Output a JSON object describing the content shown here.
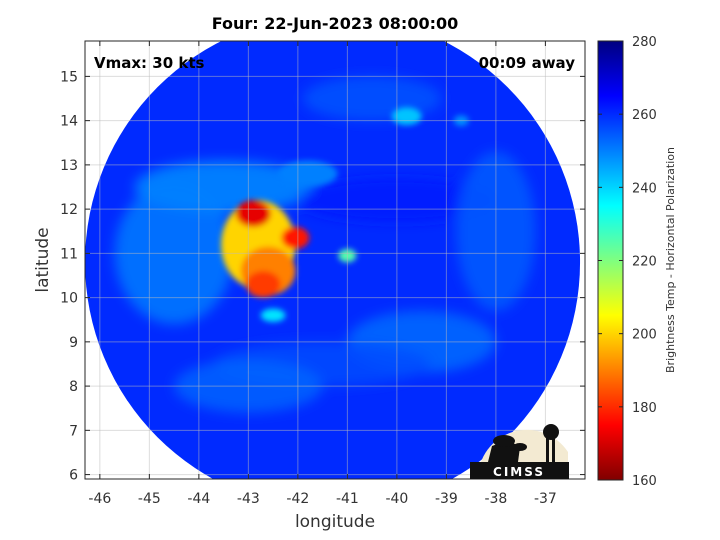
{
  "chart_data": {
    "type": "heatmap",
    "title": "Four: 22-Jun-2023 08:00:00",
    "xlabel": "longitude",
    "ylabel": "latitude",
    "xlim": [
      -46.3,
      -36.2
    ],
    "ylim": [
      5.9,
      15.8
    ],
    "xticks": [
      -46,
      -45,
      -44,
      -43,
      -42,
      -41,
      -40,
      -39,
      -38,
      -37
    ],
    "yticks": [
      6,
      7,
      8,
      9,
      10,
      11,
      12,
      13,
      14,
      15
    ],
    "grid": true,
    "swath": {
      "center": [
        -41.3,
        10.8
      ],
      "radius_deg": 5.0
    },
    "background_value": 260,
    "features": [
      {
        "lon": -42.8,
        "lat": 11.2,
        "rx": 0.75,
        "ry": 1.0,
        "value": 200
      },
      {
        "lon": -42.6,
        "lat": 10.6,
        "rx": 0.55,
        "ry": 0.55,
        "value": 190
      },
      {
        "lon": -42.9,
        "lat": 11.9,
        "rx": 0.35,
        "ry": 0.3,
        "value": 172
      },
      {
        "lon": -42.05,
        "lat": 11.35,
        "rx": 0.28,
        "ry": 0.25,
        "value": 178
      },
      {
        "lon": -42.7,
        "lat": 10.3,
        "rx": 0.35,
        "ry": 0.3,
        "value": 182
      },
      {
        "lon": -41.0,
        "lat": 10.95,
        "rx": 0.18,
        "ry": 0.15,
        "value": 225
      },
      {
        "lon": -42.5,
        "lat": 9.6,
        "rx": 0.25,
        "ry": 0.15,
        "value": 238
      },
      {
        "lon": -39.8,
        "lat": 14.1,
        "rx": 0.3,
        "ry": 0.2,
        "value": 242
      },
      {
        "lon": -38.7,
        "lat": 14.0,
        "rx": 0.15,
        "ry": 0.12,
        "value": 248
      },
      {
        "lon": -41.8,
        "lat": 12.8,
        "rx": 0.6,
        "ry": 0.3,
        "value": 250
      }
    ],
    "annotations": {
      "left": "Vmax: 30 kts",
      "right": "00:09 away"
    },
    "colorbar": {
      "label": "Brightness Temp - Horizontal Polarization",
      "range": [
        160,
        280
      ],
      "ticks": [
        160,
        180,
        200,
        220,
        240,
        260,
        280
      ],
      "colormap": "jet"
    }
  },
  "logo": {
    "text": "CIMSS"
  }
}
